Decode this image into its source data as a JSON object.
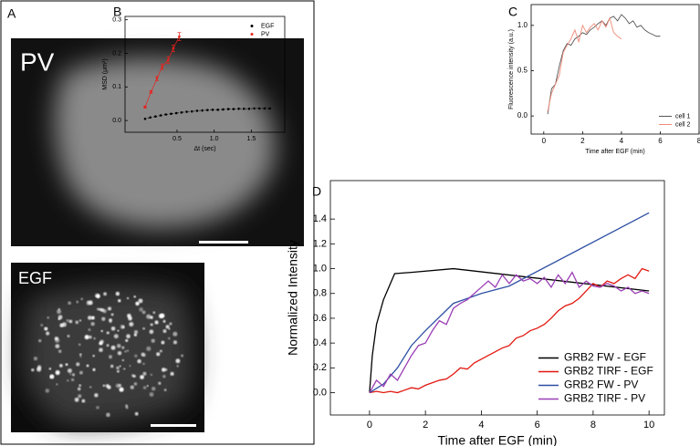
{
  "panel_labels": [
    "A",
    "B",
    "C",
    "D"
  ],
  "images": [
    {
      "label": "PV"
    },
    {
      "label": "EGF"
    }
  ],
  "chart_data": [
    {
      "type": "scatter",
      "xlabel": "Δt (sec)",
      "ylabel": "MSD (μm²)",
      "xlim": [
        -0.2,
        1.95
      ],
      "ylim": [
        -0.035,
        0.31
      ],
      "xticks": [
        0.5,
        {
          "value": 1,
          "label": "1.0"
        },
        1.5
      ],
      "yticks": [
        {
          "value": 0,
          "label": "0.0"
        },
        0.1,
        0.2,
        0.3
      ],
      "legend": "upper right",
      "series": [
        {
          "name": "EGF",
          "color": "#000000",
          "x": [
            0.07,
            0.14,
            0.21,
            0.28,
            0.35,
            0.42,
            0.49,
            0.56,
            0.63,
            0.7,
            0.77,
            0.84,
            0.91,
            0.98,
            1.05,
            1.12,
            1.19,
            1.26,
            1.33,
            1.4,
            1.47,
            1.54,
            1.61,
            1.68,
            1.75
          ],
          "values": [
            0.005,
            0.009,
            0.012,
            0.015,
            0.018,
            0.02,
            0.022,
            0.024,
            0.026,
            0.027,
            0.029,
            0.03,
            0.031,
            0.032,
            0.032,
            0.033,
            0.034,
            0.034,
            0.035,
            0.035,
            0.035,
            0.036,
            0.036,
            0.036,
            0.036
          ]
        },
        {
          "name": "PV",
          "color": "#e8211b",
          "x": [
            0.07,
            0.15,
            0.23,
            0.3,
            0.38,
            0.45,
            0.53
          ],
          "values": [
            0.04,
            0.085,
            0.125,
            0.16,
            0.18,
            0.215,
            0.25
          ],
          "errors": [
            0.003,
            0.004,
            0.006,
            0.008,
            0.01,
            0.01,
            0.012
          ]
        }
      ]
    },
    {
      "type": "line",
      "xlabel": "Time after EGF (min)",
      "ylabel": "Fluorescence intensity (a.u.)",
      "xlim": [
        -0.65,
        8
      ],
      "ylim": [
        -0.2,
        1.23
      ],
      "xticks": [
        0,
        2,
        4,
        6,
        8
      ],
      "yticks": [
        {
          "value": 0,
          "label": "0.0"
        },
        0.5,
        {
          "value": 1,
          "label": "1.0"
        }
      ],
      "legend": "lower right",
      "series": [
        {
          "name": "cell 1",
          "color": "#555555",
          "x": [
            0.2,
            0.4,
            0.6,
            0.8,
            1,
            1.2,
            1.4,
            1.6,
            1.8,
            2,
            2.2,
            2.4,
            2.6,
            2.8,
            3,
            3.2,
            3.4,
            3.6,
            3.8,
            4,
            4.2,
            4.4,
            4.6,
            4.8,
            5,
            5.2,
            5.4,
            5.6,
            5.8,
            6
          ],
          "values": [
            0.02,
            0.3,
            0.35,
            0.55,
            0.72,
            0.8,
            0.78,
            0.85,
            0.88,
            0.92,
            0.9,
            0.95,
            0.98,
            1.02,
            1.05,
            1,
            1.08,
            1.1,
            1.05,
            1.12,
            1.08,
            1.02,
            1.05,
            0.98,
            1,
            0.95,
            0.92,
            0.9,
            0.88,
            0.88
          ]
        },
        {
          "name": "cell 2",
          "color": "#f08a78",
          "x": [
            0.2,
            0.4,
            0.6,
            0.8,
            1,
            1.2,
            1.4,
            1.6,
            1.8,
            2,
            2.2,
            2.4,
            2.6,
            2.8,
            3,
            3.2,
            3.4,
            3.6,
            3.8,
            4
          ],
          "values": [
            0.05,
            0.25,
            0.35,
            0.45,
            0.7,
            0.78,
            0.85,
            0.95,
            0.82,
            1,
            0.92,
            0.98,
            1.02,
            0.95,
            1.05,
            0.98,
            1.08,
            0.92,
            0.88,
            0.85
          ]
        }
      ]
    },
    {
      "type": "line",
      "xlabel": "Time after EGF (min)",
      "ylabel": "Normalized Intensity",
      "xlim": [
        -1.4,
        10.55
      ],
      "ylim": [
        -0.18,
        1.71
      ],
      "xticks": [
        0,
        2,
        4,
        6,
        8,
        10
      ],
      "yticks": [
        {
          "value": 0,
          "label": "0.0"
        },
        0.2,
        0.4,
        0.6,
        0.8,
        {
          "value": 1,
          "label": "1.0"
        },
        1.2,
        1.4
      ],
      "legend": "lower right",
      "series": [
        {
          "name": "GRB2 FW - EGF",
          "color": "#000000",
          "x": [
            0,
            0.1,
            0.25,
            0.5,
            0.9,
            1.5,
            3,
            10
          ],
          "values": [
            0,
            0.3,
            0.55,
            0.75,
            0.96,
            0.97,
            1,
            0.82
          ]
        },
        {
          "name": "GRB2 TIRF - EGF",
          "color": "#e2170f",
          "x": [
            0,
            0.25,
            0.5,
            0.75,
            1,
            1.25,
            1.5,
            1.75,
            2,
            2.25,
            2.5,
            2.75,
            3,
            3.25,
            3.5,
            3.75,
            4,
            4.25,
            4.5,
            4.75,
            5,
            5.25,
            5.5,
            5.75,
            6,
            6.25,
            6.5,
            6.75,
            7,
            7.25,
            7.5,
            7.75,
            8,
            8.25,
            8.5,
            8.75,
            9,
            9.25,
            9.5,
            9.75,
            10
          ],
          "values": [
            0,
            0.01,
            0,
            0.01,
            0,
            0.02,
            0.04,
            0.03,
            0.06,
            0.08,
            0.1,
            0.11,
            0.15,
            0.2,
            0.19,
            0.24,
            0.27,
            0.3,
            0.33,
            0.36,
            0.38,
            0.44,
            0.46,
            0.5,
            0.52,
            0.55,
            0.6,
            0.66,
            0.7,
            0.72,
            0.76,
            0.82,
            0.88,
            0.85,
            0.9,
            0.88,
            0.92,
            0.95,
            0.92,
            1,
            0.98
          ]
        },
        {
          "name": "GRB2 FW - PV",
          "color": "#2e4fa3",
          "x": [
            0,
            0.5,
            1,
            1.5,
            2,
            3,
            4,
            5,
            10
          ],
          "values": [
            0,
            0.07,
            0.2,
            0.38,
            0.5,
            0.72,
            0.8,
            0.86,
            1.45
          ]
        },
        {
          "name": "GRB2 TIRF - PV",
          "color": "#9b3fb5",
          "x": [
            0,
            0.25,
            0.5,
            0.75,
            1,
            1.25,
            1.5,
            1.75,
            2,
            2.25,
            2.5,
            2.75,
            3,
            3.25,
            3.5,
            3.75,
            4,
            4.25,
            4.5,
            4.75,
            5,
            5.25,
            5.5,
            5.75,
            6,
            6.25,
            6.5,
            6.75,
            7,
            7.25,
            7.5,
            7.75,
            8,
            8.25,
            8.5,
            8.75,
            9,
            9.25,
            9.5,
            9.75,
            10
          ],
          "values": [
            0,
            0.1,
            0.05,
            0.15,
            0.1,
            0.2,
            0.3,
            0.38,
            0.4,
            0.5,
            0.58,
            0.55,
            0.68,
            0.72,
            0.75,
            0.8,
            0.85,
            0.9,
            0.85,
            0.95,
            0.88,
            0.95,
            0.9,
            0.92,
            0.88,
            0.93,
            0.85,
            0.95,
            0.88,
            0.97,
            0.85,
            0.9,
            0.86,
            0.85,
            0.88,
            0.86,
            0.82,
            0.85,
            0.8,
            0.82,
            0.8
          ]
        }
      ]
    }
  ]
}
